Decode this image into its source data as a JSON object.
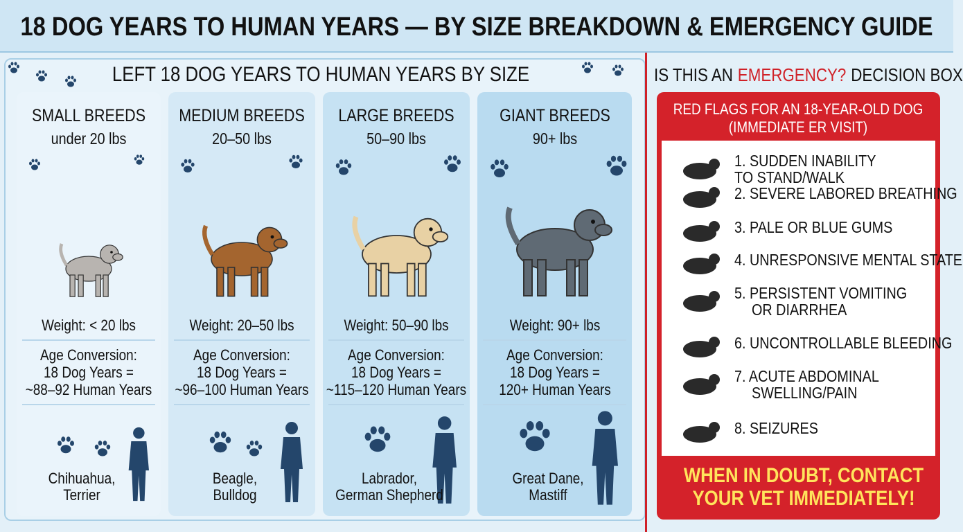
{
  "title": "18 DOG YEARS TO HUMAN YEARS — BY SIZE BREAKDOWN & EMERGENCY GUIDE",
  "left": {
    "heading": "LEFT 18 DOG YEARS TO HUMAN YEARS BY SIZE",
    "columns": [
      {
        "name": "SMALL BREEDS",
        "range": "under 20 lbs",
        "weight": "Weight: < 20 lbs",
        "conversion": [
          "Age Conversion:",
          "18 Dog Years =",
          "~88–92 Human Years"
        ],
        "breeds": [
          "Chihuahua,",
          "Terrier"
        ]
      },
      {
        "name": "MEDIUM BREEDS",
        "range": "20–50 lbs",
        "weight": "Weight: 20–50 lbs",
        "conversion": [
          "Age Conversion:",
          "18 Dog Years =",
          "~96–100 Human Years"
        ],
        "breeds": [
          "Beagle,",
          "Bulldog"
        ]
      },
      {
        "name": "LARGE BREEDS",
        "range": "50–90 lbs",
        "weight": "Weight: 50–90 lbs",
        "conversion": [
          "Age Conversion:",
          "18 Dog Years =",
          "~115–120 Human Years"
        ],
        "breeds": [
          "Labrador,",
          "German Shepherd"
        ]
      },
      {
        "name": "GIANT BREEDS",
        "range": "90+ lbs",
        "weight": "Weight: 90+ lbs",
        "conversion": [
          "Age Conversion:",
          "18 Dog Years =",
          "120+ Human Years"
        ],
        "breeds": [
          "Great Dane,",
          "Mastiff"
        ]
      }
    ]
  },
  "right": {
    "heading": [
      "IS THIS AN",
      "EMERGENCY?",
      "DECISION BOX"
    ],
    "box_header": [
      "RED FLAGS FOR AN 18-YEAR-OLD DOG",
      "(IMMEDIATE ER VISIT)"
    ],
    "flags": [
      [
        "1. SUDDEN INABILITY",
        "TO STAND/WALK"
      ],
      [
        "2. SEVERE LABORED BREATHING"
      ],
      [
        "3. PALE OR BLUE GUMS"
      ],
      [
        "4. UNRESPONSIVE MENTAL STATE"
      ],
      [
        "5. PERSISTENT VOMITING",
        "OR DIARRHEA"
      ],
      [
        "6. UNCONTROLLABLE BLEEDING"
      ],
      [
        "7.  ACUTE ABDOMINAL",
        "SWELLING/PAIN"
      ],
      [
        "8.  SEIZURES"
      ]
    ],
    "footer": [
      "WHEN IN DOUBT, CONTACT",
      "YOUR VET IMMEDIATELY!"
    ]
  }
}
